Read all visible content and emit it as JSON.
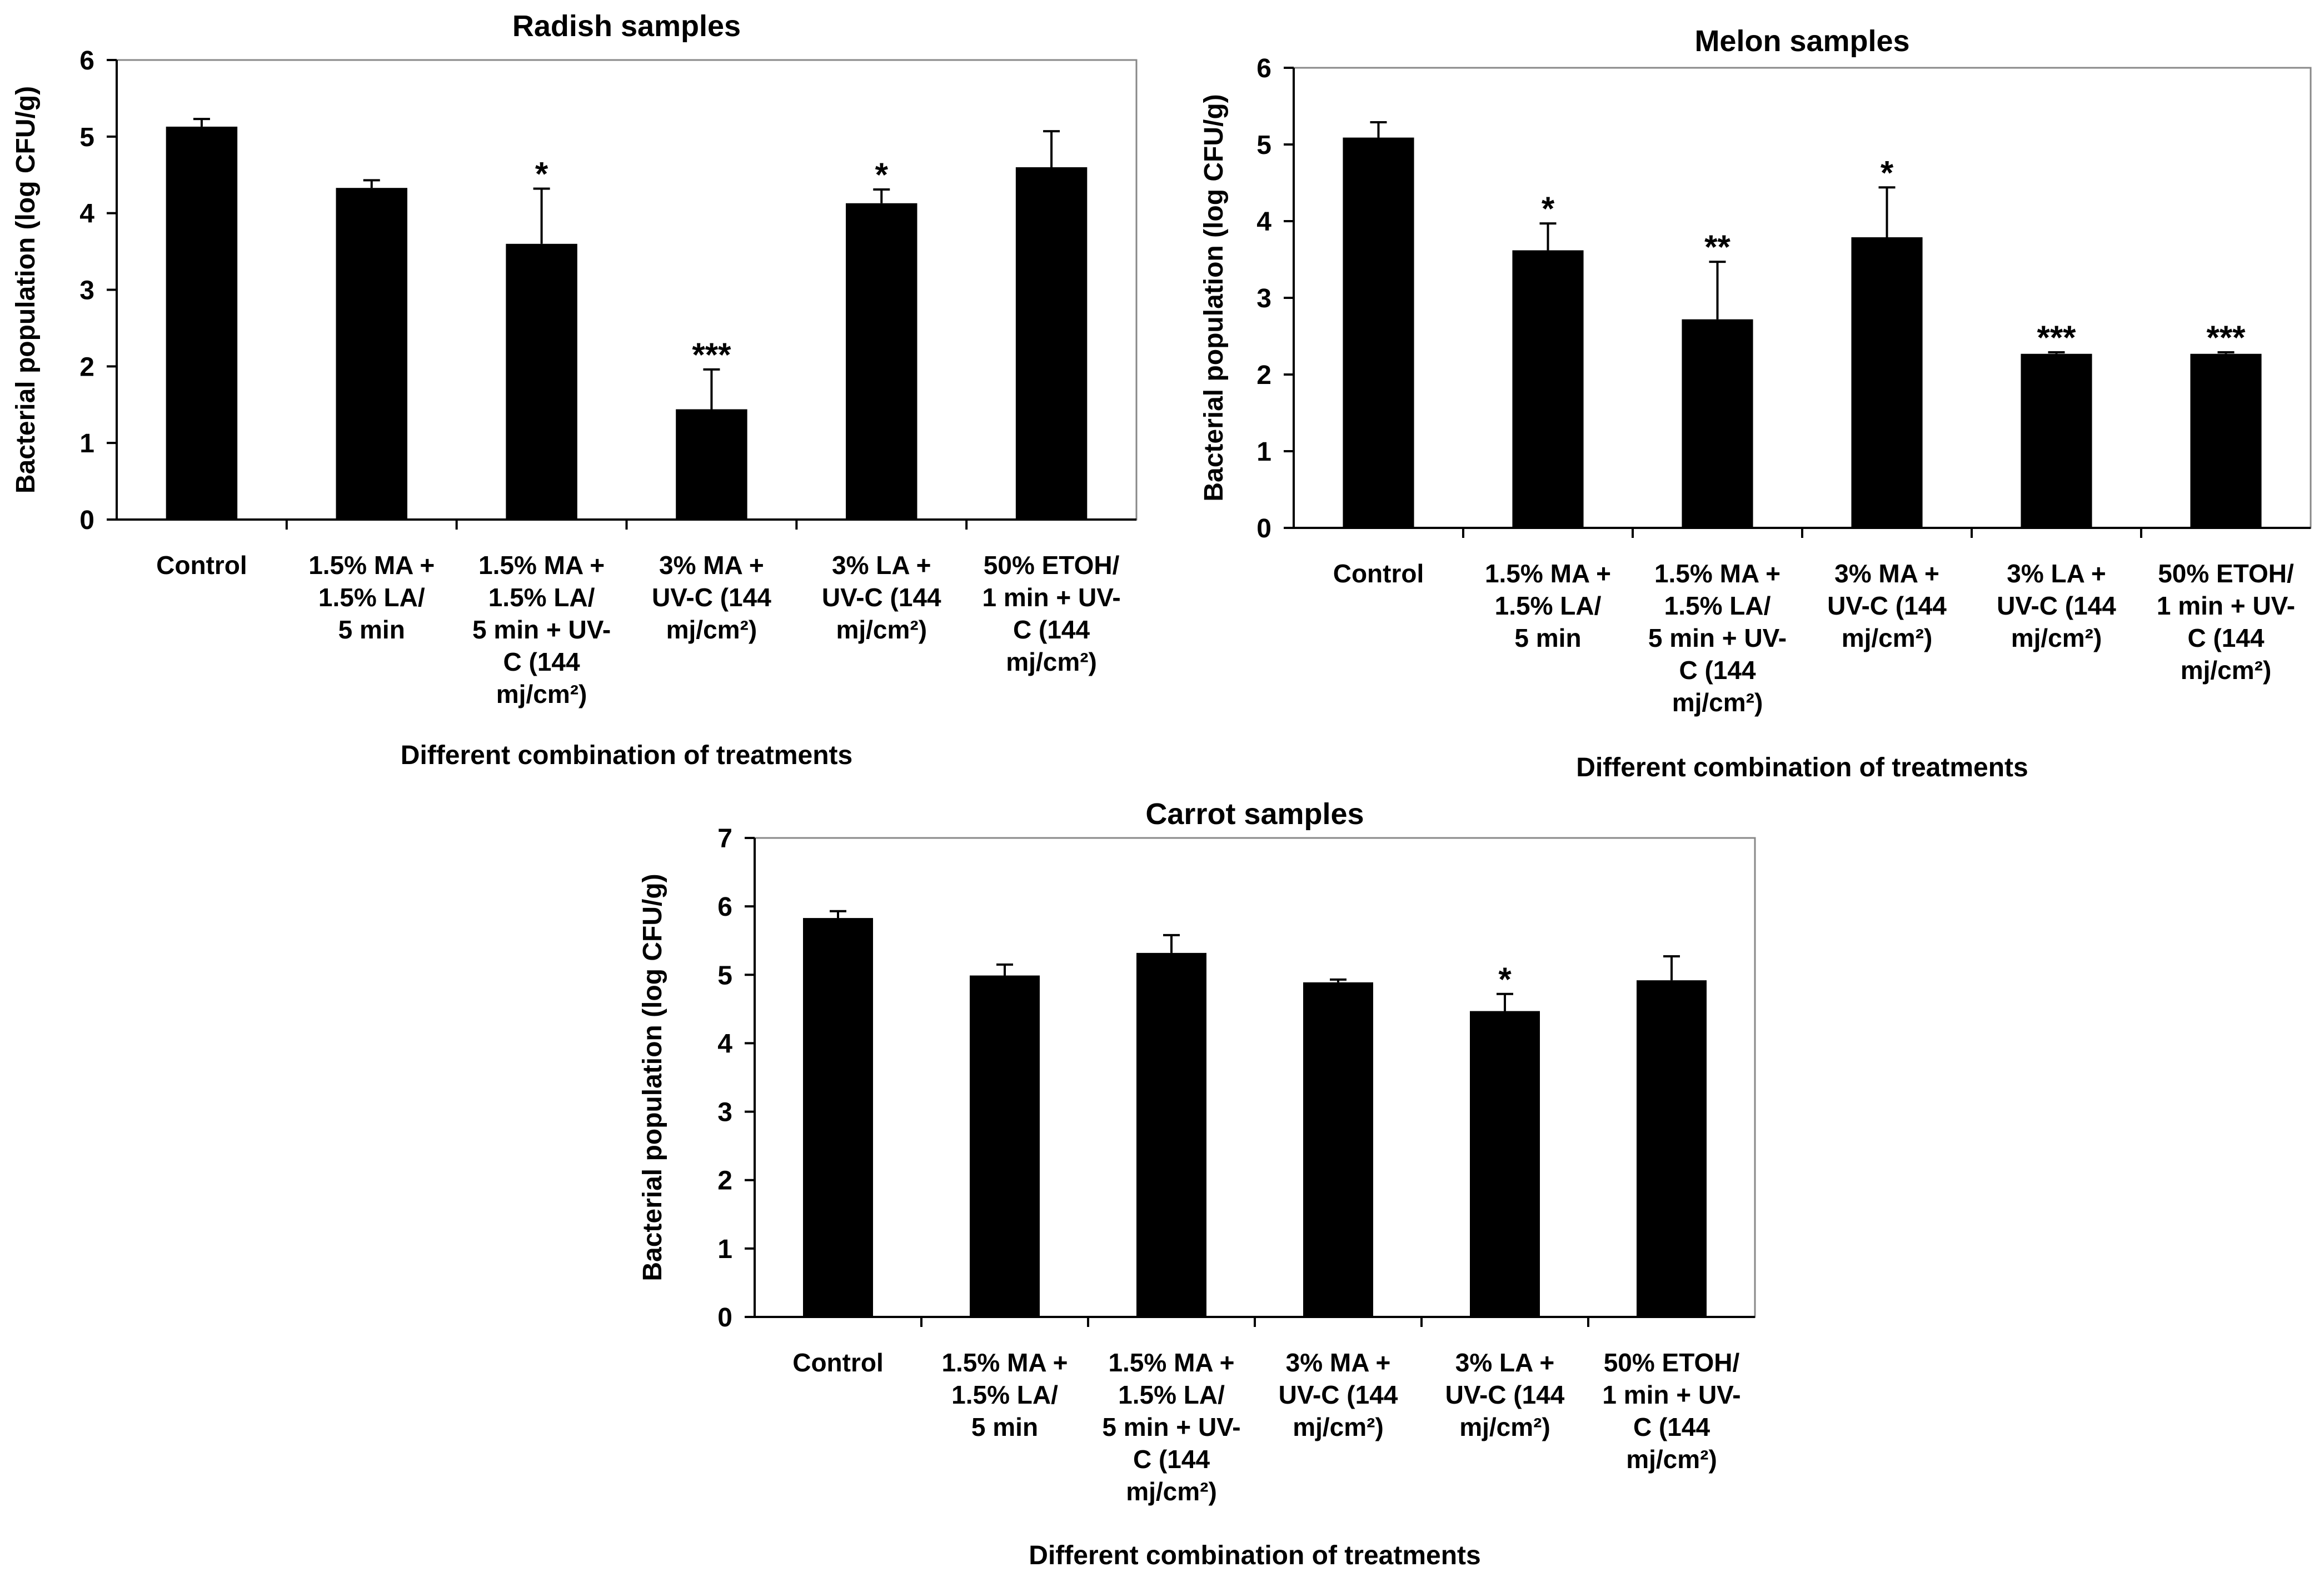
{
  "chart_data": [
    {
      "type": "bar",
      "title": "Radish samples",
      "xlabel": "Different combination of treatments",
      "ylabel": "Bacterial population (log CFU/g)",
      "ylim": [
        0,
        6
      ],
      "yticks": [
        0,
        1,
        2,
        3,
        4,
        5,
        6
      ],
      "categories": [
        [
          "Control"
        ],
        [
          "1.5% MA +",
          "1.5% LA/",
          "5 min"
        ],
        [
          "1.5% MA +",
          "1.5% LA/",
          "5 min + UV-",
          "C (144",
          "mj/cm²)"
        ],
        [
          "3% MA +",
          "UV-C (144",
          "mj/cm²)"
        ],
        [
          "3% LA +",
          "UV-C (144",
          "mj/cm²)"
        ],
        [
          "50% ETOH/",
          "1 min + UV-",
          "C (144",
          "mj/cm²)"
        ]
      ],
      "values": [
        5.13,
        4.33,
        3.6,
        1.44,
        4.13,
        4.6
      ],
      "errors": [
        0.1,
        0.1,
        0.72,
        0.52,
        0.18,
        0.47
      ],
      "significance": [
        "",
        "",
        "*",
        "***",
        "*",
        ""
      ]
    },
    {
      "type": "bar",
      "title": "Melon samples",
      "xlabel": "Different combination of treatments",
      "ylabel": "Bacterial population (log CFU/g)",
      "ylim": [
        0,
        6
      ],
      "yticks": [
        0,
        1,
        2,
        3,
        4,
        5,
        6
      ],
      "categories": [
        [
          "Control"
        ],
        [
          "1.5% MA +",
          "1.5% LA/",
          "5 min"
        ],
        [
          "1.5% MA +",
          "1.5% LA/",
          "5 min + UV-",
          "C (144",
          "mj/cm²)"
        ],
        [
          "3% MA +",
          "UV-C (144",
          "mj/cm²)"
        ],
        [
          "3% LA +",
          "UV-C (144",
          "mj/cm²)"
        ],
        [
          "50% ETOH/",
          "1 min + UV-",
          "C (144",
          "mj/cm²)"
        ]
      ],
      "values": [
        5.09,
        3.62,
        2.72,
        3.79,
        2.27,
        2.27
      ],
      "errors": [
        0.2,
        0.35,
        0.75,
        0.65,
        0.02,
        0.02
      ],
      "significance": [
        "",
        "*",
        "**",
        "*",
        "***",
        "***"
      ]
    },
    {
      "type": "bar",
      "title": "Carrot samples",
      "xlabel": "Different combination of treatments",
      "ylabel": "Bacterial population (log CFU/g)",
      "ylim": [
        0,
        7
      ],
      "yticks": [
        0,
        1,
        2,
        3,
        4,
        5,
        6,
        7
      ],
      "categories": [
        [
          "Control"
        ],
        [
          "1.5% MA +",
          "1.5% LA/",
          "5 min"
        ],
        [
          "1.5% MA +",
          "1.5% LA/",
          "5 min + UV-",
          "C (144",
          "mj/cm²)"
        ],
        [
          "3% MA +",
          "UV-C (144",
          "mj/cm²)"
        ],
        [
          "3% LA +",
          "UV-C (144",
          "mj/cm²)"
        ],
        [
          "50% ETOH/",
          "1 min + UV-",
          "C (144",
          "mj/cm²)"
        ]
      ],
      "values": [
        5.83,
        4.99,
        5.32,
        4.89,
        4.47,
        4.92
      ],
      "errors": [
        0.1,
        0.16,
        0.26,
        0.04,
        0.25,
        0.35
      ],
      "significance": [
        "",
        "",
        "",
        "",
        "*",
        ""
      ]
    }
  ]
}
